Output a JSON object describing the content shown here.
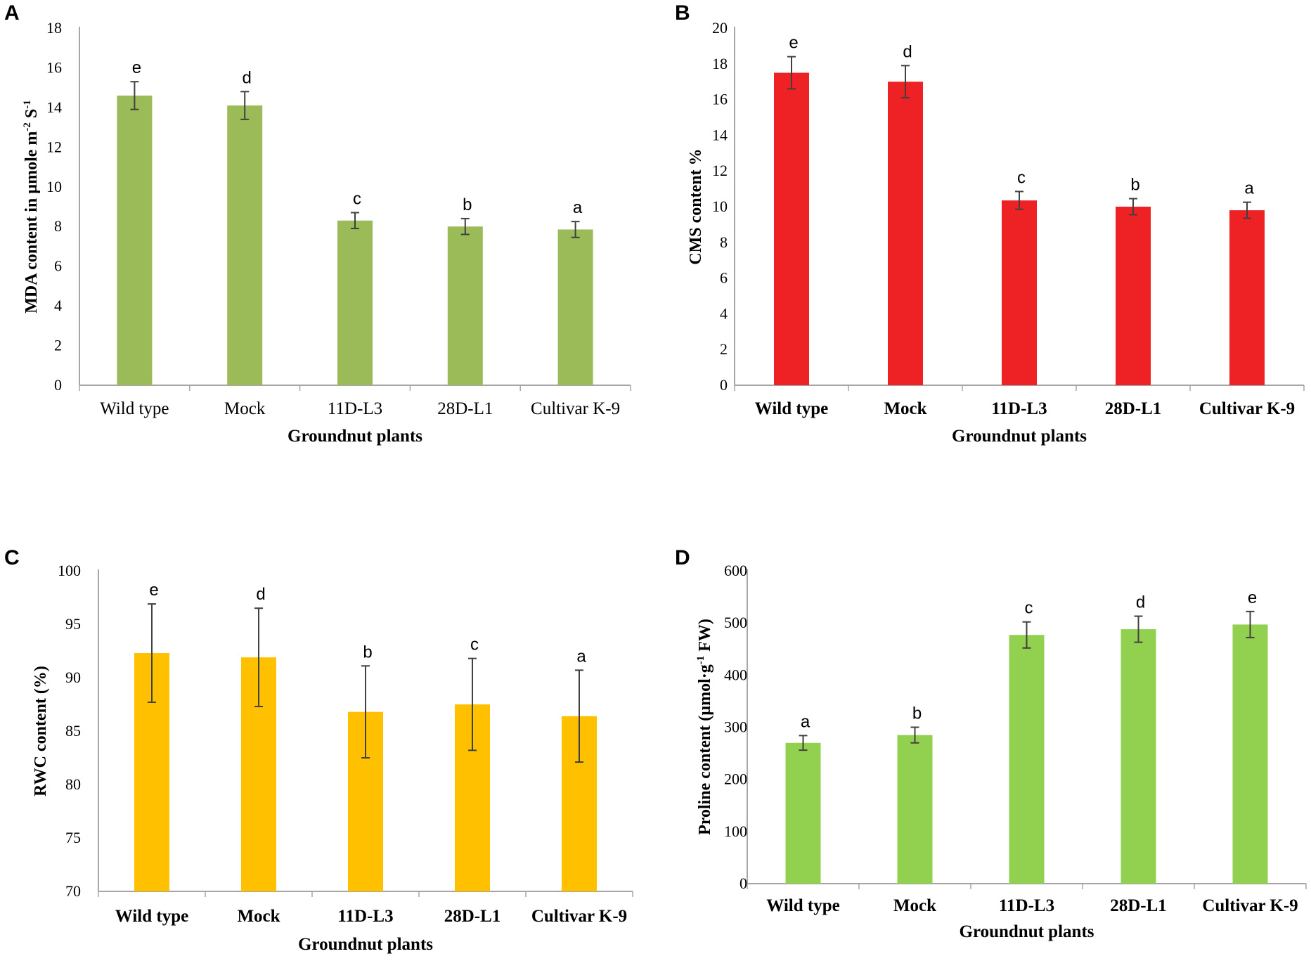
{
  "chart_data": [
    {
      "panel": "A",
      "type": "bar",
      "categories": [
        "Wild type",
        "Mock",
        "11D-L3",
        "28D-L1",
        "Cultivar K-9"
      ],
      "values": [
        14.6,
        14.1,
        8.3,
        8.0,
        7.85
      ],
      "errors": [
        0.7,
        0.7,
        0.4,
        0.4,
        0.4
      ],
      "significance": [
        "e",
        "d",
        "c",
        "b",
        "a"
      ],
      "color": "#9bbb59",
      "ylim": [
        0,
        18
      ],
      "yticks": [
        0,
        2,
        4,
        6,
        8,
        10,
        12,
        14,
        16,
        18
      ],
      "xlabel": "Groundnut plants",
      "ylabel": "MDA content in µmole m",
      "ylabel_sup1": "-2",
      "ylabel_mid": " S",
      "ylabel_sup2": "-1",
      "bold_categories": false
    },
    {
      "panel": "B",
      "type": "bar",
      "categories": [
        "Wild type",
        "Mock",
        "11D-L3",
        "28D-L1",
        "Cultivar K-9"
      ],
      "values": [
        17.5,
        17.0,
        10.35,
        10.0,
        9.8
      ],
      "errors": [
        0.9,
        0.9,
        0.5,
        0.45,
        0.45
      ],
      "significance": [
        "e",
        "d",
        "c",
        "b",
        "a"
      ],
      "color": "#ee2224",
      "ylim": [
        0,
        20
      ],
      "yticks": [
        0,
        2,
        4,
        6,
        8,
        10,
        12,
        14,
        16,
        18,
        20
      ],
      "xlabel": "Groundnut plants",
      "ylabel": "CMS content %",
      "bold_categories": true
    },
    {
      "panel": "C",
      "type": "bar",
      "categories": [
        "Wild type",
        "Mock",
        "11D-L3",
        "28D-L1",
        "Cultivar K-9"
      ],
      "values": [
        92.3,
        91.9,
        86.8,
        87.5,
        86.4
      ],
      "errors": [
        4.6,
        4.6,
        4.3,
        4.3,
        4.3
      ],
      "significance": [
        "e",
        "d",
        "b",
        "c",
        "a"
      ],
      "color": "#ffc000",
      "ylim": [
        70,
        100
      ],
      "yticks": [
        70,
        75,
        80,
        85,
        90,
        95,
        100
      ],
      "xlabel": "Groundnut plants",
      "ylabel": "RWC content (%)",
      "bold_categories": true
    },
    {
      "panel": "D",
      "type": "bar",
      "categories": [
        "Wild type",
        "Mock",
        "11D-L3",
        "28D-L1",
        "Cultivar K-9"
      ],
      "values": [
        270,
        285,
        477,
        488,
        497
      ],
      "errors": [
        14,
        15,
        25,
        25,
        25
      ],
      "significance": [
        "a",
        "b",
        "c",
        "d",
        "e"
      ],
      "color": "#92d050",
      "ylim": [
        0,
        600
      ],
      "yticks": [
        0,
        100,
        200,
        300,
        400,
        500,
        600
      ],
      "xlabel": "Groundnut plants",
      "ylabel": "Proline content (µmol·g",
      "ylabel_sup1": "-1",
      "ylabel_mid": " FW)",
      "bold_categories": true
    }
  ]
}
